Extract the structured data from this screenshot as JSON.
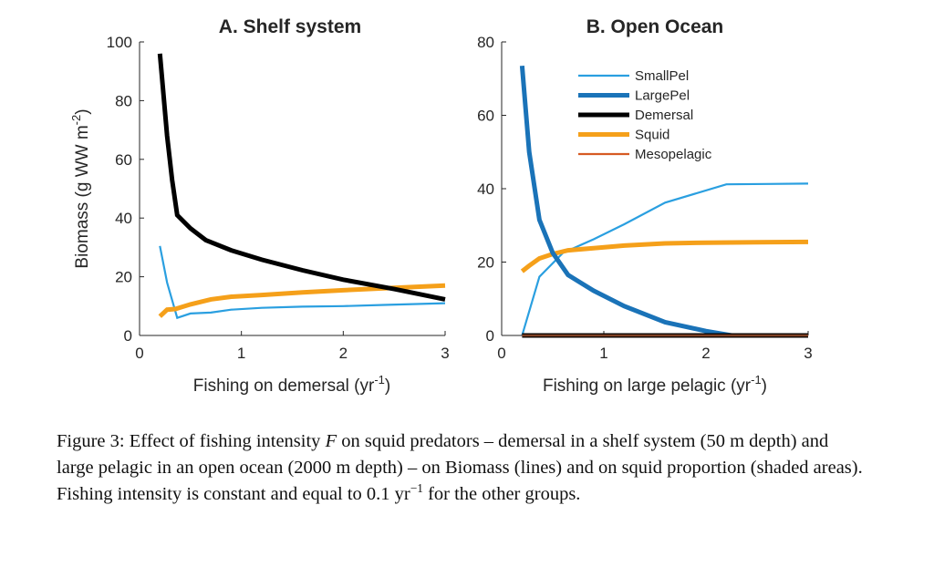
{
  "chart_data": [
    {
      "type": "line",
      "title": "A. Shelf system",
      "xlabel": "Fishing on demersal (yr",
      "xlabel_sup": "-1",
      "xlabel_tail": ")",
      "ylabel": "Biomass (g WW m",
      "ylabel_sup": "-2",
      "ylabel_tail": ")",
      "xlim": [
        0,
        3
      ],
      "ylim": [
        0,
        100
      ],
      "xticks": [
        0,
        1,
        2,
        3
      ],
      "yticks": [
        0,
        20,
        40,
        60,
        80,
        100
      ],
      "grid": false,
      "series": [
        {
          "key": "smallpel",
          "color": "#2a9fe0",
          "x": [
            0.2,
            0.27,
            0.37,
            0.5,
            0.7,
            0.9,
            1.2,
            1.6,
            2.0,
            2.4,
            3.0
          ],
          "y": [
            30.5,
            18,
            6,
            7.5,
            7.8,
            8.8,
            9.4,
            9.8,
            10.0,
            10.4,
            11.0
          ]
        },
        {
          "key": "demersal",
          "color": "#000000",
          "x": [
            0.2,
            0.23,
            0.27,
            0.32,
            0.37,
            0.5,
            0.65,
            0.9,
            1.2,
            1.6,
            2.0,
            2.5,
            3.0
          ],
          "y": [
            96,
            84,
            68,
            53,
            41,
            36.5,
            32.5,
            29,
            25.8,
            22.2,
            19,
            15.8,
            12.3
          ]
        },
        {
          "key": "squid",
          "color": "#f5a01a",
          "x": [
            0.2,
            0.27,
            0.35,
            0.5,
            0.7,
            0.9,
            1.2,
            1.6,
            2.0,
            2.5,
            3.0
          ],
          "y": [
            6.5,
            8.8,
            9,
            10.6,
            12.3,
            13.2,
            13.8,
            14.7,
            15.4,
            16.2,
            17.0
          ]
        }
      ]
    },
    {
      "type": "line",
      "title": "B. Open Ocean",
      "xlabel": "Fishing on large pelagic (yr",
      "xlabel_sup": "-1",
      "xlabel_tail": ")",
      "xlim": [
        0,
        3
      ],
      "ylim": [
        0,
        80
      ],
      "xticks": [
        0,
        1,
        2,
        3
      ],
      "yticks": [
        0,
        20,
        40,
        60,
        80
      ],
      "grid": false,
      "legend_position": "top-right",
      "series": [
        {
          "key": "smallpel",
          "name": "SmallPel",
          "color": "#2a9fe0",
          "x": [
            0.2,
            0.37,
            0.6,
            0.9,
            1.2,
            1.6,
            2.2,
            2.6,
            3.0
          ],
          "y": [
            0,
            16,
            22.5,
            26.2,
            30.3,
            36.2,
            41.2,
            41.3,
            41.4
          ]
        },
        {
          "key": "largepel",
          "name": "LargePel",
          "color": "#1a73b8",
          "x": [
            0.2,
            0.27,
            0.37,
            0.5,
            0.65,
            0.9,
            1.2,
            1.6,
            2.0,
            2.25
          ],
          "y": [
            73.5,
            50,
            31.5,
            22.5,
            16.5,
            12.2,
            8,
            3.6,
            1.2,
            0
          ]
        },
        {
          "key": "demersal",
          "name": "Demersal",
          "color": "#000000",
          "x": [
            0.2,
            3.0
          ],
          "y": [
            0,
            0
          ]
        },
        {
          "key": "squid",
          "name": "Squid",
          "color": "#f5a01a",
          "x": [
            0.2,
            0.27,
            0.37,
            0.5,
            0.65,
            0.9,
            1.2,
            1.6,
            2.0,
            2.5,
            3.0
          ],
          "y": [
            17.5,
            19,
            21,
            22.2,
            23.2,
            23.8,
            24.5,
            25.1,
            25.3,
            25.4,
            25.5
          ]
        },
        {
          "key": "mesopelagic",
          "name": "Mesopelagic",
          "color": "#d65a23",
          "x": [
            0.2,
            3.0
          ],
          "y": [
            0,
            0
          ]
        }
      ]
    }
  ],
  "caption": {
    "label": "Figure 3:",
    "part1": "Effect of fishing intensity ",
    "symbol": "F",
    "part2": " on squid predators – demersal in a shelf system (50 m depth) and large pelagic in an open ocean (2000 m depth) – on Biomass (lines) and on squid proportion (shaded areas). Fishing intensity is constant and equal to 0.1 yr",
    "exponent": "−1",
    "part3": " for the other groups."
  }
}
